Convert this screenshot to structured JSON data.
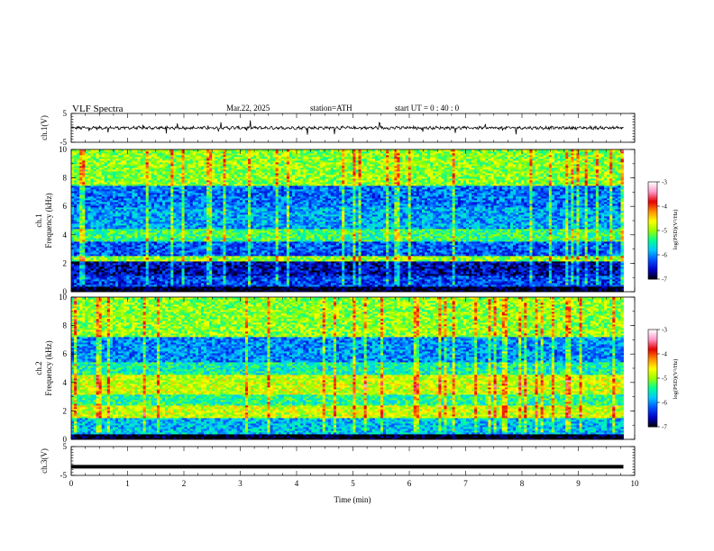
{
  "header": {
    "title": "VLF  Spectra",
    "date": "Mar.22, 2025",
    "station": "station=ATH",
    "start": "start  UT  =   0 : 40 : 0"
  },
  "chart_data": [
    {
      "id": "ch1-waveform",
      "type": "line",
      "ylabel": "ch.1(V)",
      "ylim": [
        -5,
        5
      ],
      "yticks": [
        5,
        -5
      ],
      "xlim": [
        0,
        10
      ],
      "series": [
        {
          "x_range": [
            0,
            9.8
          ],
          "mean": 0.0,
          "amplitude": 0.7,
          "spikes": true
        }
      ]
    },
    {
      "id": "ch1-spectrogram",
      "type": "heatmap",
      "ylabel_lines": [
        "ch.1",
        "Frequency  (kHz)"
      ],
      "ylim": [
        0,
        10
      ],
      "yticks": [
        0,
        2,
        4,
        6,
        8,
        10
      ],
      "xlim": [
        0,
        10
      ],
      "data_x_range": [
        0,
        9.8
      ],
      "bands": [
        {
          "f": [
            0.0,
            0.4
          ],
          "level": -7.0
        },
        {
          "f": [
            0.4,
            1.2
          ],
          "level": -6.3
        },
        {
          "f": [
            1.2,
            2.1
          ],
          "level": -6.6
        },
        {
          "f": [
            2.1,
            2.5
          ],
          "level": -5.0
        },
        {
          "f": [
            2.5,
            3.6
          ],
          "level": -6.2
        },
        {
          "f": [
            3.6,
            4.4
          ],
          "level": -5.3
        },
        {
          "f": [
            4.4,
            6.0
          ],
          "level": -5.9
        },
        {
          "f": [
            6.0,
            7.5
          ],
          "level": -6.1
        },
        {
          "f": [
            7.5,
            10.0
          ],
          "level": -5.0
        }
      ],
      "colorbar": {
        "label": "log(PSD)(V²/Hz)",
        "min": -7,
        "max": -3,
        "ticks": [
          -3,
          -4,
          -5,
          -6,
          -7
        ]
      }
    },
    {
      "id": "ch2-spectrogram",
      "type": "heatmap",
      "ylabel_lines": [
        "ch.2",
        "Frequency  (kHz)"
      ],
      "ylim": [
        0,
        10
      ],
      "yticks": [
        0,
        2,
        4,
        6,
        8,
        10
      ],
      "xlim": [
        0,
        10
      ],
      "data_x_range": [
        0,
        9.8
      ],
      "bands": [
        {
          "f": [
            0.0,
            0.4
          ],
          "level": -7.0
        },
        {
          "f": [
            0.4,
            1.5
          ],
          "level": -5.8
        },
        {
          "f": [
            1.5,
            2.4
          ],
          "level": -4.8
        },
        {
          "f": [
            2.4,
            3.2
          ],
          "level": -5.4
        },
        {
          "f": [
            3.2,
            4.6
          ],
          "level": -4.8
        },
        {
          "f": [
            4.6,
            5.4
          ],
          "level": -5.5
        },
        {
          "f": [
            5.4,
            7.2
          ],
          "level": -6.0
        },
        {
          "f": [
            7.2,
            10.0
          ],
          "level": -5.0
        }
      ],
      "colorbar": {
        "label": "log(PSD)(V²/Hz)",
        "min": -7,
        "max": -3,
        "ticks": [
          -3,
          -4,
          -5,
          -6,
          -7
        ]
      }
    },
    {
      "id": "ch3-waveform",
      "type": "line",
      "ylabel": "ch.3(V)",
      "ylim": [
        -5,
        5
      ],
      "yticks": [
        5,
        -5
      ],
      "xlim": [
        0,
        10
      ],
      "xlabel": "Time  (min)",
      "xticks": [
        0,
        1,
        2,
        3,
        4,
        5,
        6,
        7,
        8,
        9,
        10
      ],
      "series": [
        {
          "x_range": [
            0,
            9.8
          ],
          "mean": -2.0,
          "amplitude": 0.0,
          "spikes": false
        }
      ]
    }
  ],
  "colors": {
    "frame": "#000000",
    "trace": "#000000",
    "colormap": [
      "#000000",
      "#0000c8",
      "#0050ff",
      "#00c8ff",
      "#00ff96",
      "#96ff00",
      "#ffff00",
      "#ff8c00",
      "#e60000",
      "#ff96c8",
      "#ffffff"
    ]
  }
}
